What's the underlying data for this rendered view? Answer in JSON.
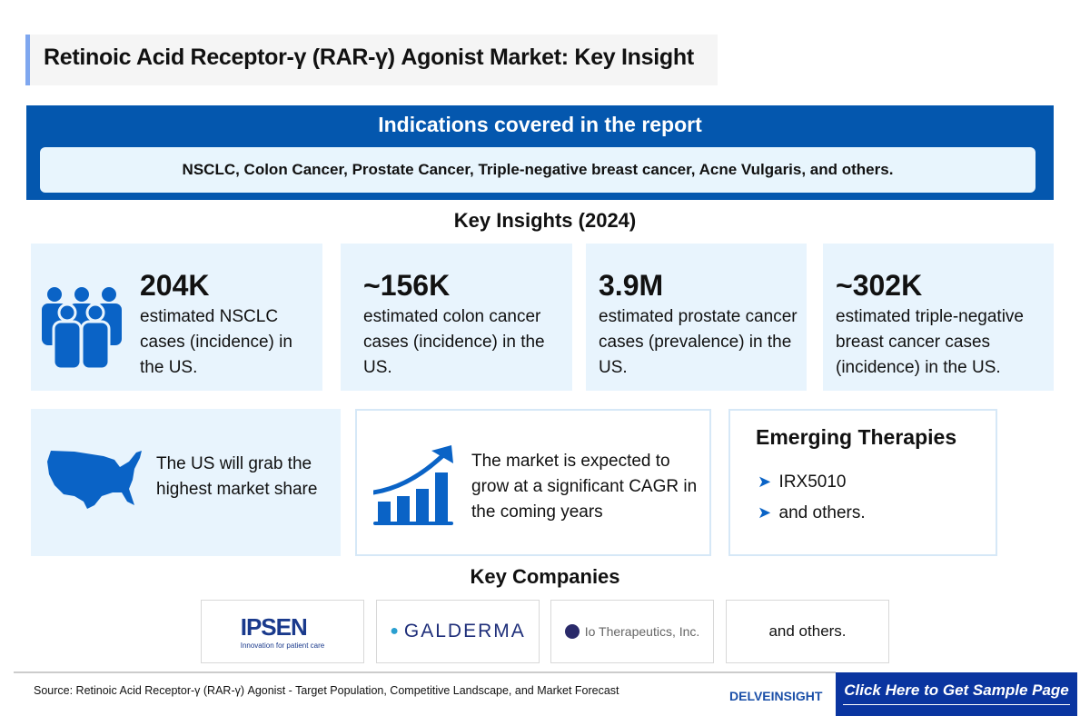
{
  "title": "Retinoic Acid Receptor-γ (RAR-γ) Agonist Market: Key Insight",
  "indications": {
    "heading": "Indications covered in the report",
    "list": "NSCLC, Colon Cancer, Prostate Cancer, Triple-negative breast cancer, Acne Vulgaris, and others."
  },
  "insights_heading": "Key Insights (2024)",
  "stats": [
    {
      "value": "204K",
      "desc": "estimated NSCLC cases (incidence) in the US.",
      "icon": "people-group-icon"
    },
    {
      "value": "~156K",
      "desc": "estimated colon cancer cases (incidence) in the US."
    },
    {
      "value": "3.9M",
      "desc": "estimated prostate cancer cases (prevalence) in the US."
    },
    {
      "value": "~302K",
      "desc": "estimated triple-negative breast cancer cases (incidence) in the US."
    }
  ],
  "us_share": {
    "text": "The US will grab the highest market share",
    "icon": "us-map-icon"
  },
  "growth": {
    "text": "The market is expected to grow at a significant CAGR in the coming years",
    "icon": "growth-chart-icon"
  },
  "emerging": {
    "heading": "Emerging Therapies",
    "items": [
      "IRX5010",
      "and others."
    ]
  },
  "companies": {
    "heading": "Key Companies",
    "logos": [
      {
        "name": "IPSEN",
        "tagline": "Innovation for patient care"
      },
      {
        "name": "GALDERMA"
      },
      {
        "name": "Io Therapeutics, Inc."
      }
    ],
    "others": "and others."
  },
  "footer": {
    "source": "Source: Retinoic Acid Receptor-γ (RAR-γ) Agonist - Target Population, Competitive Landscape, and Market Forecast",
    "brand": "DELVEINSIGHT",
    "cta": "Click Here to Get Sample Page"
  },
  "colors": {
    "primary": "#0457ae",
    "icon": "#0a63c6",
    "light": "#e8f4fd",
    "cta": "#0a35a0"
  }
}
